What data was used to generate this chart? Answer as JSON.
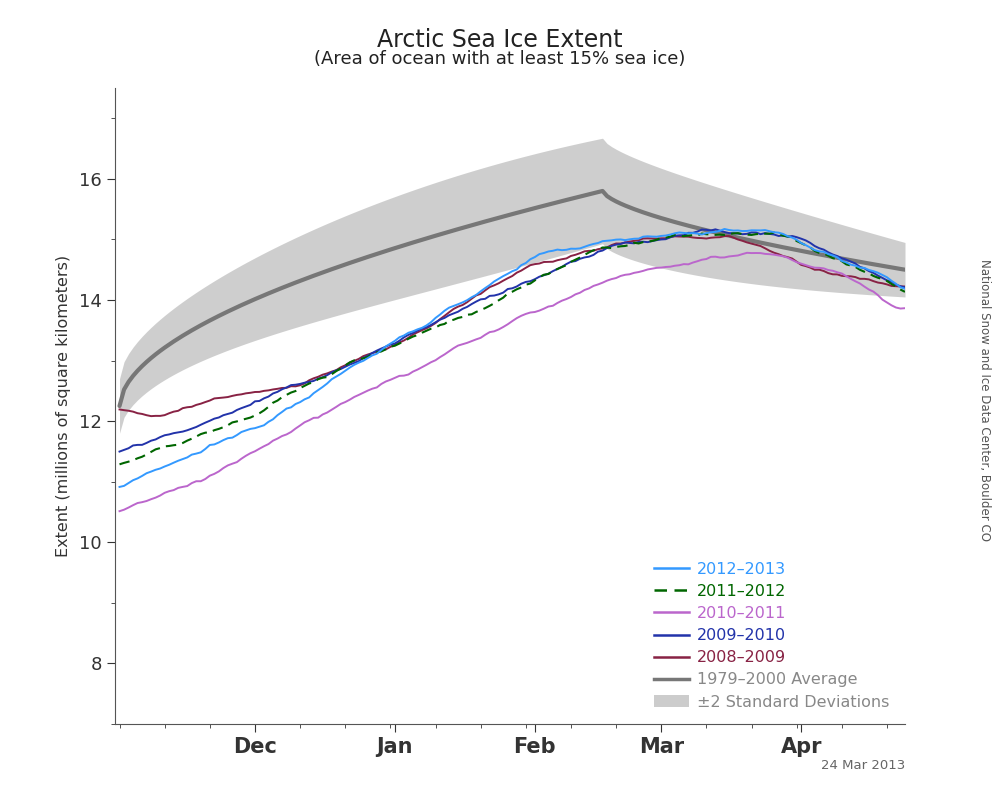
{
  "title": "Arctic Sea Ice Extent",
  "subtitle": "(Area of ocean with at least 15% sea ice)",
  "ylabel": "Extent (millions of square kilometers)",
  "ylim": [
    7.0,
    17.5
  ],
  "yticks_major": [
    8,
    10,
    12,
    14,
    16
  ],
  "watermark": "24 Mar 2013",
  "side_label": "National Snow and Ice Data Center, Boulder CO",
  "line_colors": {
    "2012-2013": "#3399ff",
    "2011-2012": "#006600",
    "2010-2011": "#bb66cc",
    "2009-2010": "#2233aa",
    "2008-2009": "#882244",
    "average": "#777777",
    "std_fill": "#cccccc"
  },
  "x_month_ticks": [
    30,
    61,
    92,
    120,
    151
  ],
  "x_month_labels": [
    "Dec",
    "Jan",
    "Feb",
    "Mar",
    "Apr"
  ],
  "n_days": 175
}
